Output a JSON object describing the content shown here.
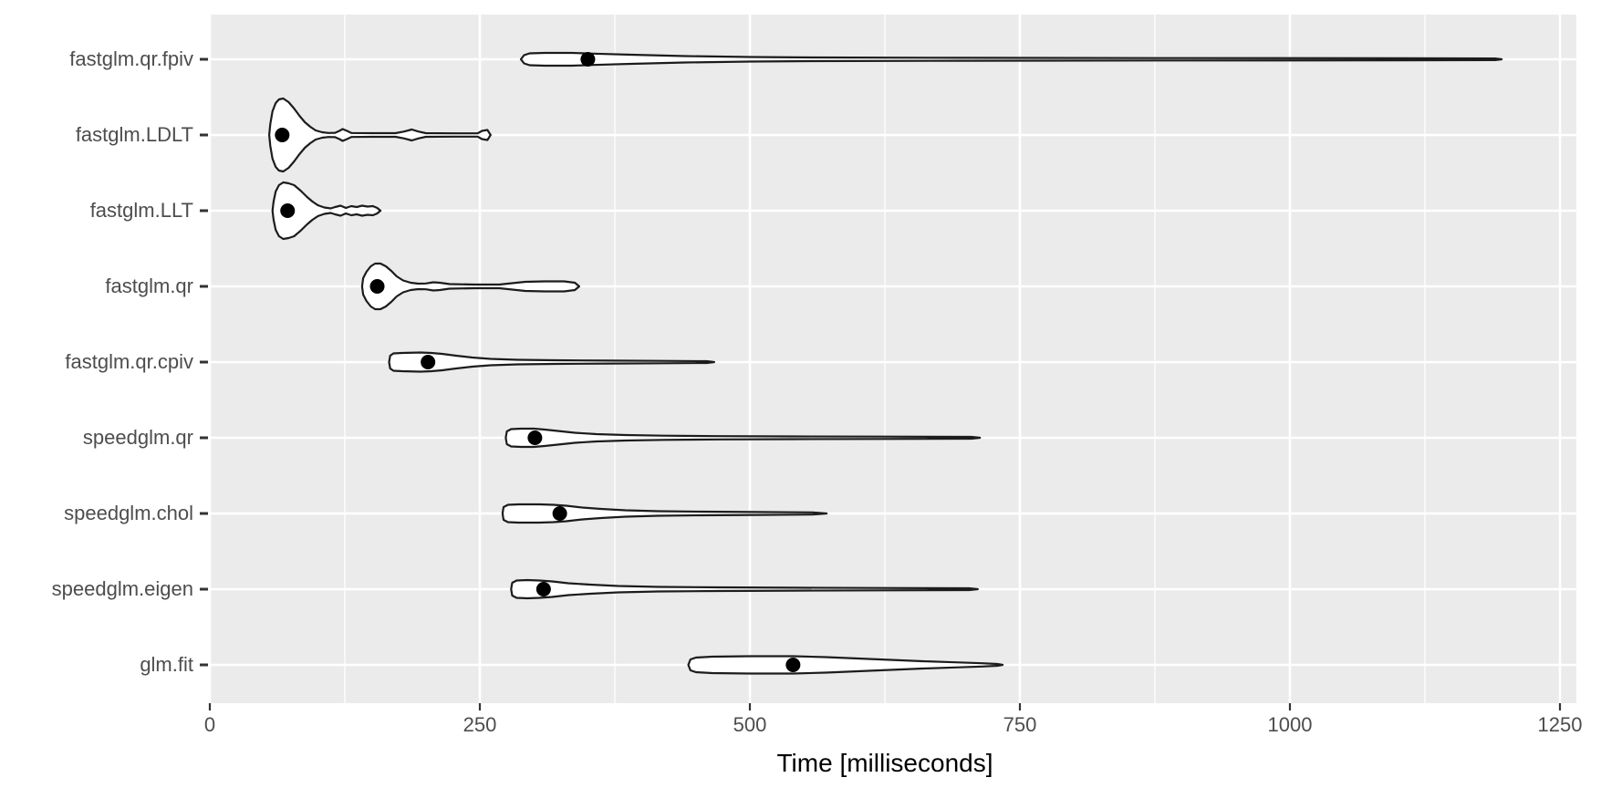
{
  "chart_data": {
    "type": "violin",
    "orientation": "horizontal",
    "title": "",
    "xlabel": "Time [milliseconds]",
    "ylabel": "",
    "xlim": [
      0,
      1265
    ],
    "x_ticks": [
      0,
      250,
      500,
      750,
      1000,
      1250
    ],
    "x_tick_labels": [
      "0",
      "250",
      "500",
      "750",
      "1000",
      "1250"
    ],
    "x_minor_ticks": [
      125,
      375,
      625,
      875,
      1125
    ],
    "grid": "on",
    "legend": "none",
    "categories": [
      "fastglm.qr.fpiv",
      "fastglm.LDLT",
      "fastglm.LLT",
      "fastglm.qr",
      "fastglm.qr.cpiv",
      "speedglm.qr",
      "speedglm.chol",
      "speedglm.eigen",
      "glm.fit"
    ],
    "series": [
      {
        "name": "fastglm.qr.fpiv",
        "point_ms": 350,
        "min_ms": 288,
        "max_ms": 1196,
        "profile": [
          [
            288,
            0
          ],
          [
            291,
            4.5
          ],
          [
            296,
            6.5
          ],
          [
            310,
            7
          ],
          [
            335,
            7
          ],
          [
            355,
            6.2
          ],
          [
            390,
            5
          ],
          [
            440,
            3.5
          ],
          [
            500,
            2.5
          ],
          [
            560,
            2
          ],
          [
            700,
            1.6
          ],
          [
            900,
            1.3
          ],
          [
            1100,
            1.1
          ],
          [
            1190,
            0.9
          ],
          [
            1196,
            0
          ]
        ]
      },
      {
        "name": "fastglm.LDLT",
        "point_ms": 67,
        "min_ms": 55,
        "max_ms": 260,
        "profile": [
          [
            55,
            0
          ],
          [
            56,
            12
          ],
          [
            58,
            26
          ],
          [
            61,
            35
          ],
          [
            64,
            39
          ],
          [
            68,
            40
          ],
          [
            73,
            36
          ],
          [
            78,
            29
          ],
          [
            83,
            21
          ],
          [
            88,
            14
          ],
          [
            93,
            9
          ],
          [
            98,
            5
          ],
          [
            104,
            3
          ],
          [
            110,
            2.2
          ],
          [
            116,
            2.4
          ],
          [
            120,
            4.5
          ],
          [
            123,
            6.5
          ],
          [
            127,
            4.5
          ],
          [
            131,
            2.2
          ],
          [
            150,
            2
          ],
          [
            172,
            2
          ],
          [
            180,
            3.8
          ],
          [
            187,
            6
          ],
          [
            193,
            3.8
          ],
          [
            200,
            2
          ],
          [
            225,
            1.8
          ],
          [
            248,
            1.8
          ],
          [
            252,
            4.5
          ],
          [
            257,
            5.5
          ],
          [
            260,
            0
          ]
        ]
      },
      {
        "name": "fastglm.LLT",
        "point_ms": 72,
        "min_ms": 58,
        "max_ms": 158,
        "profile": [
          [
            58,
            0
          ],
          [
            59,
            10
          ],
          [
            61,
            21
          ],
          [
            64,
            28
          ],
          [
            68,
            31
          ],
          [
            73,
            30
          ],
          [
            78,
            28
          ],
          [
            84,
            22
          ],
          [
            90,
            15
          ],
          [
            95,
            10
          ],
          [
            100,
            6
          ],
          [
            106,
            3.5
          ],
          [
            112,
            2.5
          ],
          [
            116,
            4
          ],
          [
            121,
            5.5
          ],
          [
            126,
            3
          ],
          [
            131,
            5
          ],
          [
            136,
            4
          ],
          [
            141,
            5.5
          ],
          [
            146,
            4.5
          ],
          [
            151,
            5
          ],
          [
            155,
            3
          ],
          [
            158,
            0
          ]
        ]
      },
      {
        "name": "fastglm.qr",
        "point_ms": 155,
        "min_ms": 141,
        "max_ms": 342,
        "profile": [
          [
            141,
            0
          ],
          [
            142,
            9
          ],
          [
            145,
            16
          ],
          [
            149,
            22
          ],
          [
            153,
            25
          ],
          [
            158,
            25
          ],
          [
            163,
            22
          ],
          [
            168,
            17
          ],
          [
            173,
            11
          ],
          [
            179,
            6.5
          ],
          [
            186,
            4
          ],
          [
            193,
            3
          ],
          [
            200,
            3.2
          ],
          [
            207,
            4.5
          ],
          [
            213,
            4
          ],
          [
            222,
            2.5
          ],
          [
            245,
            2
          ],
          [
            268,
            2
          ],
          [
            280,
            3.5
          ],
          [
            292,
            5
          ],
          [
            310,
            5.5
          ],
          [
            328,
            5.5
          ],
          [
            338,
            4
          ],
          [
            342,
            0
          ]
        ]
      },
      {
        "name": "fastglm.qr.cpiv",
        "point_ms": 202,
        "min_ms": 166,
        "max_ms": 467,
        "profile": [
          [
            166,
            0
          ],
          [
            167,
            7
          ],
          [
            170,
            9.5
          ],
          [
            178,
            10
          ],
          [
            195,
            10.5
          ],
          [
            205,
            10
          ],
          [
            215,
            9
          ],
          [
            228,
            7
          ],
          [
            243,
            5
          ],
          [
            260,
            3.5
          ],
          [
            285,
            2.5
          ],
          [
            320,
            2
          ],
          [
            370,
            1.6
          ],
          [
            420,
            1.3
          ],
          [
            460,
            1
          ],
          [
            467,
            0
          ]
        ]
      },
      {
        "name": "speedglm.qr",
        "point_ms": 301,
        "min_ms": 274,
        "max_ms": 713,
        "profile": [
          [
            274,
            0
          ],
          [
            275,
            7
          ],
          [
            279,
            9.5
          ],
          [
            288,
            10
          ],
          [
            300,
            10
          ],
          [
            310,
            9
          ],
          [
            322,
            7.5
          ],
          [
            338,
            5.5
          ],
          [
            358,
            4
          ],
          [
            385,
            3
          ],
          [
            420,
            2.3
          ],
          [
            470,
            1.8
          ],
          [
            540,
            1.5
          ],
          [
            620,
            1.3
          ],
          [
            705,
            1
          ],
          [
            713,
            0
          ]
        ]
      },
      {
        "name": "speedglm.chol",
        "point_ms": 324,
        "min_ms": 271,
        "max_ms": 571,
        "profile": [
          [
            271,
            0
          ],
          [
            272,
            7
          ],
          [
            276,
            9.5
          ],
          [
            286,
            10
          ],
          [
            305,
            10
          ],
          [
            318,
            9.5
          ],
          [
            330,
            8.5
          ],
          [
            345,
            6.5
          ],
          [
            362,
            5
          ],
          [
            385,
            3.5
          ],
          [
            415,
            2.5
          ],
          [
            455,
            2
          ],
          [
            505,
            1.6
          ],
          [
            558,
            1.2
          ],
          [
            571,
            0
          ]
        ]
      },
      {
        "name": "speedglm.eigen",
        "point_ms": 309,
        "min_ms": 279,
        "max_ms": 711,
        "profile": [
          [
            279,
            0
          ],
          [
            280,
            7
          ],
          [
            284,
            9.5
          ],
          [
            294,
            10
          ],
          [
            305,
            9.5
          ],
          [
            317,
            8.5
          ],
          [
            332,
            6.5
          ],
          [
            352,
            5
          ],
          [
            378,
            3.5
          ],
          [
            415,
            2.5
          ],
          [
            470,
            2
          ],
          [
            540,
            1.6
          ],
          [
            620,
            1.3
          ],
          [
            703,
            1
          ],
          [
            711,
            0
          ]
        ]
      },
      {
        "name": "glm.fit",
        "point_ms": 540,
        "min_ms": 443,
        "max_ms": 734,
        "profile": [
          [
            443,
            0
          ],
          [
            445,
            6
          ],
          [
            450,
            8
          ],
          [
            465,
            9
          ],
          [
            500,
            9.5
          ],
          [
            540,
            9.5
          ],
          [
            570,
            8.5
          ],
          [
            600,
            7
          ],
          [
            630,
            5.5
          ],
          [
            660,
            4
          ],
          [
            690,
            2.8
          ],
          [
            715,
            1.8
          ],
          [
            729,
            1
          ],
          [
            734,
            0
          ]
        ]
      }
    ],
    "colors": {
      "panel_bg": "#EBEBEB",
      "grid": "#FFFFFF",
      "violin_fill": "#FFFFFF",
      "violin_stroke": "#1C1C1C",
      "point": "#000000",
      "tick_label": "#4D4D4D",
      "tick_mark": "#333333",
      "axis_title": "#000000"
    }
  }
}
